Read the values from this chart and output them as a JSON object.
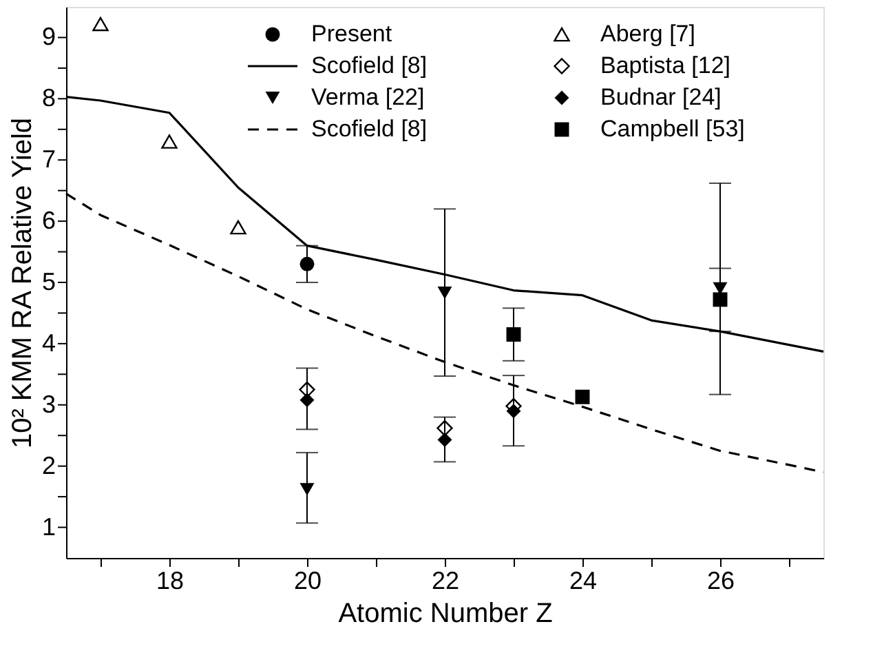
{
  "chart_data": {
    "type": "scatter",
    "xlabel": "Atomic Number Z",
    "ylabel": "10² KMM RA Relative Yield",
    "xlim": [
      16.5,
      27.5
    ],
    "ylim": [
      0.5,
      9.5
    ],
    "xticks": [
      {
        "value": 17,
        "label": null
      },
      18,
      {
        "value": 19,
        "label": null
      },
      20,
      {
        "value": 21,
        "label": null
      },
      22,
      {
        "value": 23,
        "label": null
      },
      24,
      {
        "value": 25,
        "label": null
      },
      26,
      {
        "value": 27,
        "label": null
      }
    ],
    "yticks": [
      1,
      {
        "value": 1.5,
        "label": null
      },
      2,
      {
        "value": 2.5,
        "label": null
      },
      3,
      {
        "value": 3.5,
        "label": null
      },
      4,
      {
        "value": 4.5,
        "label": null
      },
      5,
      {
        "value": 5.5,
        "label": null
      },
      6,
      {
        "value": 6.5,
        "label": null
      },
      7,
      {
        "value": 7.5,
        "label": null
      },
      8,
      {
        "value": 8.5,
        "label": null
      },
      9
    ],
    "grid": false,
    "legend": "top right",
    "series": [
      {
        "name": "Present",
        "marker": "circle",
        "color": "#000000",
        "x": [
          20
        ],
        "values": [
          5.3
        ],
        "errors": [
          [
            5.0,
            5.6
          ]
        ]
      },
      {
        "name": "Scofield [8]",
        "type": "line",
        "line_style": "solid",
        "marker": "none",
        "color": "#000000",
        "x": [
          16.5,
          17,
          18,
          19,
          20,
          21,
          22,
          23,
          24,
          25,
          26,
          27.5
        ],
        "values": [
          8.03,
          7.97,
          7.77,
          6.55,
          5.6,
          5.37,
          5.13,
          4.87,
          4.79,
          4.38,
          4.2,
          3.87
        ]
      },
      {
        "name": "Verma [22]",
        "marker": "triangle-down",
        "color": "#000000",
        "x": [
          20,
          22,
          26
        ],
        "values": [
          1.62,
          4.83,
          4.9
        ],
        "errors": [
          [
            1.07,
            2.22
          ],
          [
            3.47,
            6.2
          ],
          [
            3.17,
            6.62
          ]
        ]
      },
      {
        "name": "Scofield [8]",
        "type": "line",
        "line_style": "dashed",
        "marker": "none",
        "color": "#000000",
        "x": [
          16.5,
          17,
          18,
          19,
          20,
          21,
          22,
          23,
          24,
          25,
          26,
          27,
          27.5
        ],
        "values": [
          6.45,
          6.1,
          5.61,
          5.1,
          4.56,
          4.12,
          3.7,
          3.32,
          2.97,
          2.6,
          2.25,
          2.02,
          1.9
        ]
      },
      {
        "name": "Aberg [7]",
        "marker": "triangle-open",
        "color": "#000000",
        "x": [
          17,
          18,
          19
        ],
        "values": [
          9.22,
          7.3,
          5.9
        ]
      },
      {
        "name": "Baptista [12]",
        "marker": "diamond-open",
        "color": "#000000",
        "x": [
          20,
          22,
          23
        ],
        "values": [
          3.25,
          2.62,
          2.98
        ]
      },
      {
        "name": "Budnar [24]",
        "marker": "diamond",
        "color": "#000000",
        "x": [
          20,
          22,
          23
        ],
        "values": [
          3.08,
          2.43,
          2.9
        ],
        "errors": [
          [
            2.6,
            3.6
          ],
          [
            2.07,
            2.8
          ],
          [
            2.33,
            3.48
          ]
        ]
      },
      {
        "name": "Campbell [53]",
        "marker": "square",
        "color": "#000000",
        "x": [
          23,
          24,
          26
        ],
        "values": [
          4.15,
          3.13,
          4.72
        ],
        "errors": [
          [
            3.72,
            4.58
          ],
          null,
          [
            4.2,
            5.23
          ]
        ]
      }
    ]
  }
}
